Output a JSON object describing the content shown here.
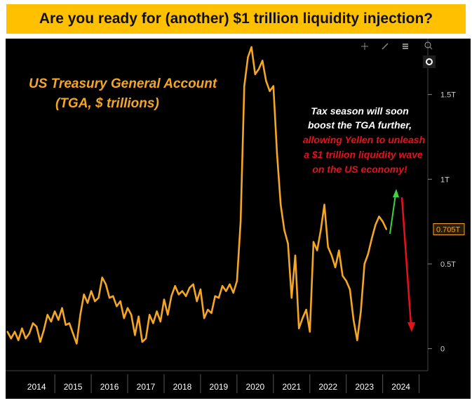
{
  "banner": {
    "title": "Are you ready for (another) $1 trillion liquidity injection?"
  },
  "chart_data": {
    "type": "line",
    "title_lines": [
      "US Treasury General Account",
      "(TGA, $ trillions)"
    ],
    "annotation": {
      "white_lines": [
        "Tax season will soon",
        "boost the TGA further,"
      ],
      "red_lines": [
        "allowing Yellen to unleash",
        "a $1 trillion liquidity wave",
        "on the US economy!"
      ]
    },
    "x_tick_labels": [
      "2014",
      "2015",
      "2016",
      "2017",
      "2018",
      "2019",
      "2020",
      "2021",
      "2022",
      "2023",
      "2024"
    ],
    "y_tick_labels": [
      "1.5T",
      "1T",
      "0.5T",
      "0"
    ],
    "y_ticks": [
      1.5,
      1.0,
      0.5,
      0
    ],
    "ylim": [
      -0.13,
      1.83
    ],
    "xlim": [
      2013.65,
      2025.2
    ],
    "last_value_label": "0.705T",
    "series": [
      {
        "color": "#f5a623",
        "x": [
          2013.7,
          2013.8,
          2013.9,
          2014.0,
          2014.1,
          2014.2,
          2014.3,
          2014.4,
          2014.5,
          2014.6,
          2014.7,
          2014.8,
          2014.9,
          2015.0,
          2015.1,
          2015.2,
          2015.3,
          2015.4,
          2015.5,
          2015.6,
          2015.7,
          2015.8,
          2015.9,
          2016.0,
          2016.1,
          2016.2,
          2016.3,
          2016.4,
          2016.5,
          2016.6,
          2016.7,
          2016.8,
          2016.9,
          2017.0,
          2017.1,
          2017.2,
          2017.3,
          2017.4,
          2017.5,
          2017.6,
          2017.7,
          2017.8,
          2017.9,
          2018.0,
          2018.1,
          2018.2,
          2018.3,
          2018.4,
          2018.5,
          2018.6,
          2018.7,
          2018.8,
          2018.9,
          2019.0,
          2019.1,
          2019.2,
          2019.3,
          2019.4,
          2019.5,
          2019.6,
          2019.7,
          2019.8,
          2019.9,
          2020.0,
          2020.1,
          2020.2,
          2020.3,
          2020.4,
          2020.5,
          2020.6,
          2020.7,
          2020.8,
          2020.9,
          2021.0,
          2021.1,
          2021.2,
          2021.3,
          2021.4,
          2021.5,
          2021.6,
          2021.7,
          2021.8,
          2021.9,
          2022.0,
          2022.1,
          2022.2,
          2022.3,
          2022.4,
          2022.5,
          2022.6,
          2022.7,
          2022.8,
          2022.9,
          2023.0,
          2023.1,
          2023.2,
          2023.3,
          2023.4,
          2023.5,
          2023.6,
          2023.7,
          2023.8,
          2023.9,
          2024.0,
          2024.1
        ],
        "y": [
          0.1,
          0.06,
          0.1,
          0.05,
          0.12,
          0.06,
          0.09,
          0.15,
          0.13,
          0.04,
          0.11,
          0.2,
          0.16,
          0.22,
          0.17,
          0.24,
          0.14,
          0.15,
          0.09,
          0.03,
          0.2,
          0.32,
          0.27,
          0.34,
          0.28,
          0.3,
          0.42,
          0.38,
          0.3,
          0.31,
          0.25,
          0.28,
          0.18,
          0.24,
          0.2,
          0.08,
          0.19,
          0.04,
          0.06,
          0.2,
          0.15,
          0.22,
          0.16,
          0.29,
          0.2,
          0.31,
          0.37,
          0.32,
          0.34,
          0.31,
          0.36,
          0.38,
          0.28,
          0.35,
          0.18,
          0.23,
          0.21,
          0.31,
          0.3,
          0.37,
          0.34,
          0.38,
          0.33,
          0.4,
          0.75,
          1.55,
          1.72,
          1.78,
          1.62,
          1.65,
          1.7,
          1.58,
          1.52,
          1.55,
          1.15,
          0.85,
          0.7,
          0.62,
          0.3,
          0.55,
          0.12,
          0.18,
          0.23,
          0.1,
          0.63,
          0.58,
          0.7,
          0.85,
          0.6,
          0.55,
          0.48,
          0.58,
          0.43,
          0.4,
          0.35,
          0.17,
          0.05,
          0.22,
          0.5,
          0.56,
          0.65,
          0.73,
          0.78,
          0.75,
          0.705
        ]
      }
    ],
    "arrows": [
      {
        "color": "#3fd23f",
        "direction": "up"
      },
      {
        "color": "#e8101a",
        "direction": "down"
      }
    ],
    "grid": false,
    "background": "#000000"
  },
  "toolbar": {
    "icons": [
      "crosshair-icon",
      "pencil-icon",
      "chart-type-icon",
      "zoom-icon",
      "camera-icon"
    ]
  }
}
